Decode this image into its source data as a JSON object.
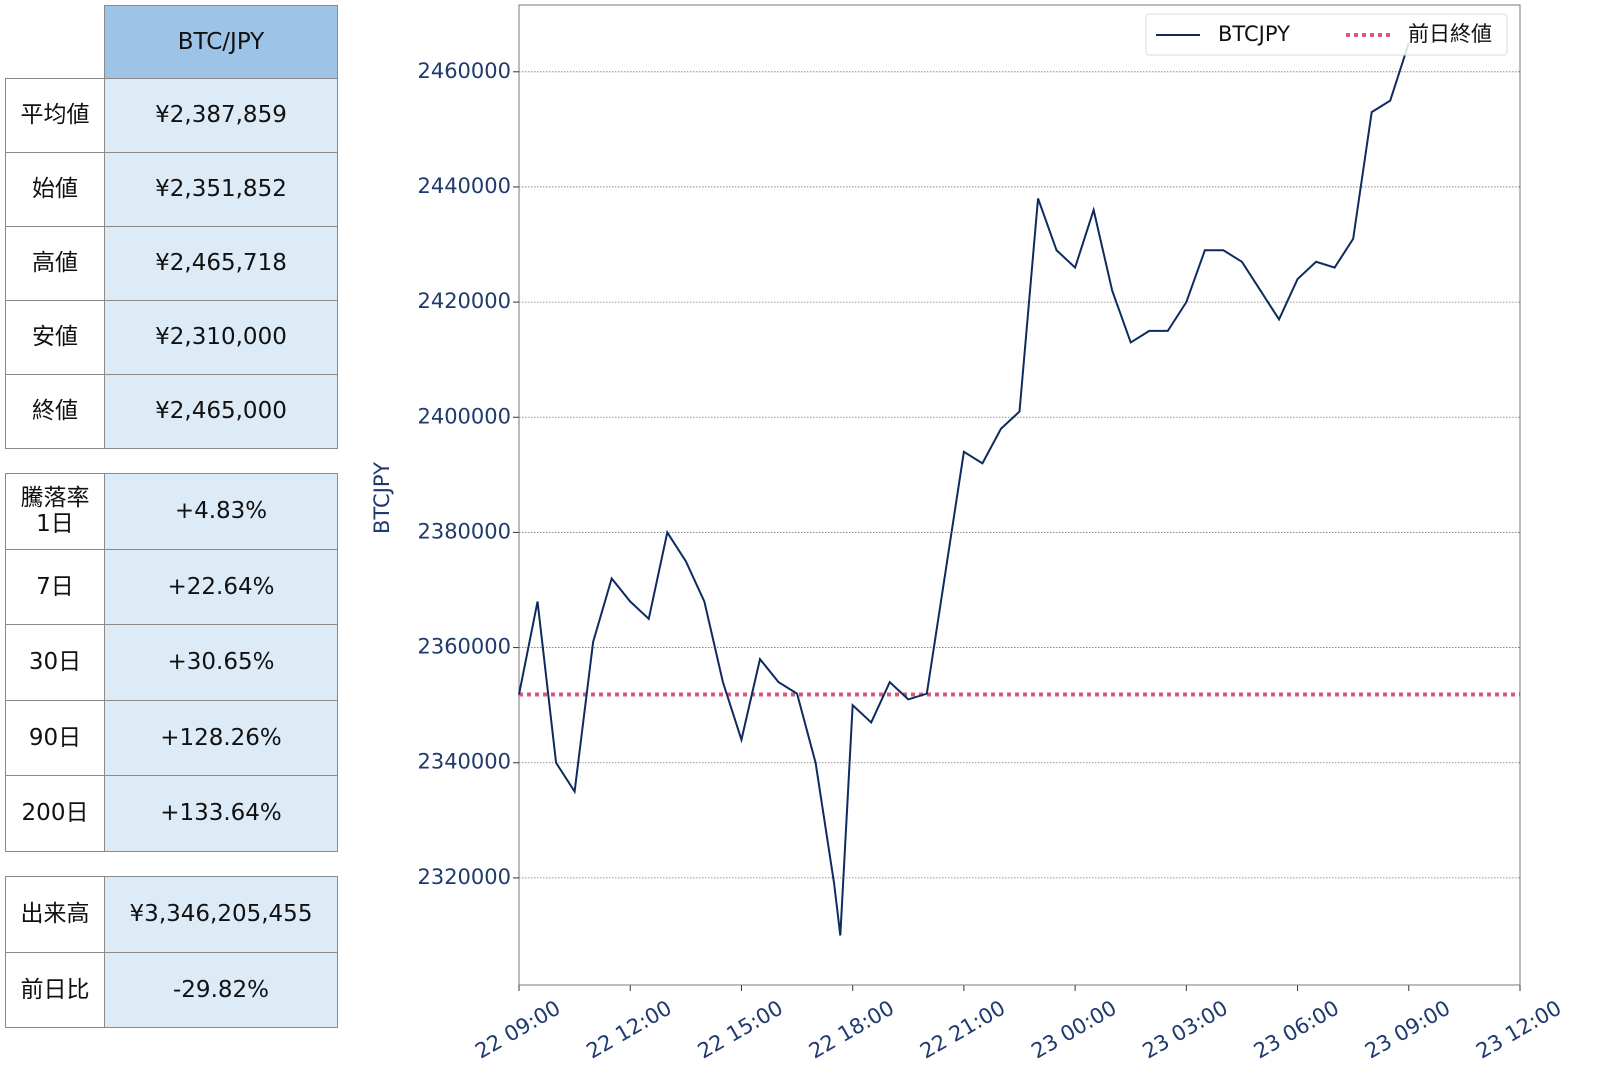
{
  "tables": [
    {
      "header": "BTC/JPY",
      "rows": [
        [
          "平均値",
          "¥2,387,859"
        ],
        [
          "始値",
          "¥2,351,852"
        ],
        [
          "高値",
          "¥2,465,718"
        ],
        [
          "安値",
          "¥2,310,000"
        ],
        [
          "終値",
          "¥2,465,000"
        ]
      ]
    },
    {
      "rows": [
        [
          "騰落率\n1日",
          "+4.83%"
        ],
        [
          "7日",
          "+22.64%"
        ],
        [
          "30日",
          "+30.65%"
        ],
        [
          "90日",
          "+128.26%"
        ],
        [
          "200日",
          "+133.64%"
        ]
      ]
    },
    {
      "rows": [
        [
          "出来高",
          "¥3,346,205,455"
        ],
        [
          "前日比",
          "-29.82%"
        ]
      ]
    }
  ],
  "chart_data": {
    "type": "line",
    "ylabel": "BTCJPY",
    "x": [
      "22 09:00",
      "22 09:30",
      "22 10:00",
      "22 10:30",
      "22 11:00",
      "22 11:30",
      "22 12:00",
      "22 12:30",
      "22 13:00",
      "22 13:30",
      "22 14:00",
      "22 14:30",
      "22 15:00",
      "22 15:30",
      "22 16:00",
      "22 16:30",
      "22 17:00",
      "22 17:30",
      "22 17:40",
      "22 18:00",
      "22 18:30",
      "22 19:00",
      "22 19:30",
      "22 20:00",
      "22 20:30",
      "22 21:00",
      "22 21:30",
      "22 22:00",
      "22 22:30",
      "22 23:00",
      "22 23:30",
      "23 00:00",
      "23 00:30",
      "23 01:00",
      "23 01:30",
      "23 02:00",
      "23 02:30",
      "23 03:00",
      "23 03:30",
      "23 04:00",
      "23 04:30",
      "23 05:00",
      "23 05:30",
      "23 06:00",
      "23 06:30",
      "23 07:00",
      "23 07:30",
      "23 08:00",
      "23 08:30",
      "23 09:00"
    ],
    "series": [
      {
        "name": "BTCJPY",
        "color": "#0d2b5e",
        "values": [
          2351852,
          2368000,
          2340000,
          2335000,
          2361000,
          2372000,
          2368000,
          2365000,
          2380000,
          2375000,
          2368000,
          2354000,
          2344000,
          2358000,
          2354000,
          2352000,
          2340000,
          2319000,
          2310000,
          2350000,
          2347000,
          2354000,
          2351000,
          2352000,
          2373000,
          2394000,
          2392000,
          2398000,
          2401000,
          2438000,
          2429000,
          2426000,
          2436000,
          2422000,
          2413000,
          2415000,
          2415000,
          2420000,
          2429000,
          2429000,
          2427000,
          2422000,
          2417000,
          2424000,
          2427000,
          2426000,
          2431000,
          2453000,
          2455000,
          2465000
        ]
      }
    ],
    "hline": {
      "name": "前日終値",
      "value": 2351852,
      "color": "#d9597a"
    },
    "xlim": [
      "22 09:00",
      "23 12:00"
    ],
    "xticks": [
      "22 09:00",
      "22 12:00",
      "22 15:00",
      "22 18:00",
      "22 21:00",
      "23 00:00",
      "23 03:00",
      "23 06:00",
      "23 09:00",
      "23 12:00"
    ],
    "ylim": [
      2301400,
      2471600
    ],
    "yticks": [
      2320000,
      2340000,
      2360000,
      2380000,
      2400000,
      2420000,
      2440000,
      2460000
    ],
    "grid": true,
    "legend": "upper right"
  }
}
